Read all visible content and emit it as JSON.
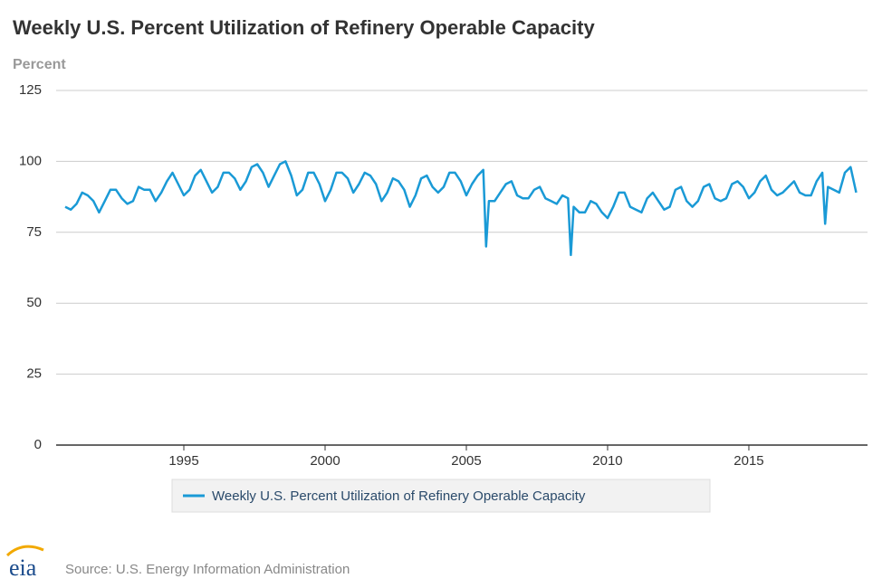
{
  "chart_data": {
    "type": "line",
    "title": "Weekly U.S. Percent Utilization of Refinery Operable Capacity",
    "y_label": "Percent",
    "source": "Source: U.S. Energy Information Administration",
    "logo": "eia",
    "x": [
      1990.8,
      1991,
      1991.2,
      1991.4,
      1991.6,
      1991.8,
      1992,
      1992.2,
      1992.4,
      1992.6,
      1992.8,
      1993,
      1993.2,
      1993.4,
      1993.6,
      1993.8,
      1994,
      1994.2,
      1994.4,
      1994.6,
      1994.8,
      1995,
      1995.2,
      1995.4,
      1995.6,
      1995.8,
      1996,
      1996.2,
      1996.4,
      1996.6,
      1996.8,
      1997,
      1997.2,
      1997.4,
      1997.6,
      1997.8,
      1998,
      1998.2,
      1998.4,
      1998.6,
      1998.8,
      1999,
      1999.2,
      1999.4,
      1999.6,
      1999.8,
      2000,
      2000.2,
      2000.4,
      2000.6,
      2000.8,
      2001,
      2001.2,
      2001.4,
      2001.6,
      2001.8,
      2002,
      2002.2,
      2002.4,
      2002.6,
      2002.8,
      2003,
      2003.2,
      2003.4,
      2003.6,
      2003.8,
      2004,
      2004.2,
      2004.4,
      2004.6,
      2004.8,
      2005,
      2005.2,
      2005.4,
      2005.6,
      2005.7,
      2005.8,
      2006,
      2006.2,
      2006.4,
      2006.6,
      2006.8,
      2007,
      2007.2,
      2007.4,
      2007.6,
      2007.8,
      2008,
      2008.2,
      2008.4,
      2008.6,
      2008.7,
      2008.8,
      2009,
      2009.2,
      2009.4,
      2009.6,
      2009.8,
      2010,
      2010.2,
      2010.4,
      2010.6,
      2010.8,
      2011,
      2011.2,
      2011.4,
      2011.6,
      2011.8,
      2012,
      2012.2,
      2012.4,
      2012.6,
      2012.8,
      2013,
      2013.2,
      2013.4,
      2013.6,
      2013.8,
      2014,
      2014.2,
      2014.4,
      2014.6,
      2014.8,
      2015,
      2015.2,
      2015.4,
      2015.6,
      2015.8,
      2016,
      2016.2,
      2016.4,
      2016.6,
      2016.8,
      2017,
      2017.2,
      2017.4,
      2017.6,
      2017.7,
      2017.8,
      2018,
      2018.2,
      2018.4,
      2018.6,
      2018.8
    ],
    "series": [
      {
        "name": "Weekly U.S. Percent Utilization of Refinery Operable Capacity",
        "color": "#1a9ad6",
        "values": [
          84,
          83,
          85,
          89,
          88,
          86,
          82,
          86,
          90,
          90,
          87,
          85,
          86,
          91,
          90,
          90,
          86,
          89,
          93,
          96,
          92,
          88,
          90,
          95,
          97,
          93,
          89,
          91,
          96,
          96,
          94,
          90,
          93,
          98,
          99,
          96,
          91,
          95,
          99,
          100,
          95,
          88,
          90,
          96,
          96,
          92,
          86,
          90,
          96,
          96,
          94,
          89,
          92,
          96,
          95,
          92,
          86,
          89,
          94,
          93,
          90,
          84,
          88,
          94,
          95,
          91,
          89,
          91,
          96,
          96,
          93,
          88,
          92,
          95,
          97,
          70,
          86,
          86,
          89,
          92,
          93,
          88,
          87,
          87,
          90,
          91,
          87,
          86,
          85,
          88,
          87,
          67,
          84,
          82,
          82,
          86,
          85,
          82,
          80,
          84,
          89,
          89,
          84,
          83,
          82,
          87,
          89,
          86,
          83,
          84,
          90,
          91,
          86,
          84,
          86,
          91,
          92,
          87,
          86,
          87,
          92,
          93,
          91,
          87,
          89,
          93,
          95,
          90,
          88,
          89,
          91,
          93,
          89,
          88,
          88,
          93,
          96,
          78,
          91,
          90,
          89,
          96,
          98,
          89
        ]
      }
    ],
    "xlim": [
      1990.48,
      2019.2
    ],
    "xticks": [
      1995,
      2000,
      2005,
      2010,
      2015
    ],
    "ylim": [
      0,
      125
    ],
    "yticks": [
      0,
      25,
      50,
      75,
      100,
      125
    ],
    "grid": true
  }
}
